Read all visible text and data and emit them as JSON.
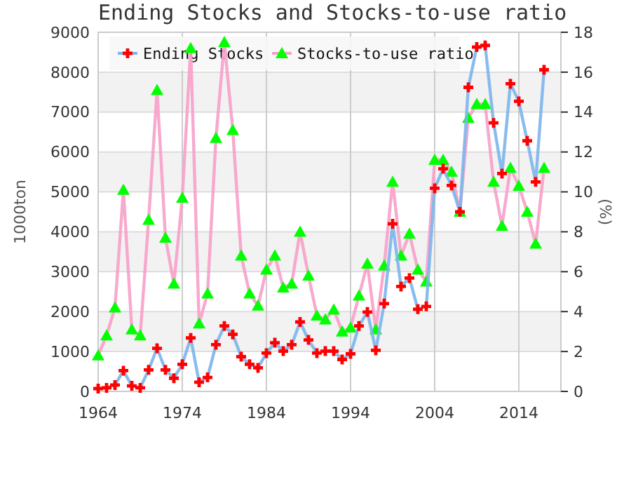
{
  "chart_data": {
    "type": "line",
    "title": "Ending Stocks and Stocks-to-use ratio",
    "ylabel": "1000ton",
    "y2label": "(%)",
    "x": [
      1964,
      1965,
      1966,
      1967,
      1968,
      1969,
      1970,
      1971,
      1972,
      1973,
      1974,
      1975,
      1976,
      1977,
      1978,
      1979,
      1980,
      1981,
      1982,
      1983,
      1984,
      1985,
      1986,
      1987,
      1988,
      1989,
      1990,
      1991,
      1992,
      1993,
      1994,
      1995,
      1996,
      1997,
      1998,
      1999,
      2000,
      2001,
      2002,
      2003,
      2004,
      2005,
      2006,
      2007,
      2008,
      2009,
      2010,
      2011,
      2012,
      2013,
      2014,
      2015,
      2016,
      2017
    ],
    "series": [
      {
        "name": "Ending Stocks",
        "color": "#7cb5ec",
        "colors": [
          "#ff0000",
          "#ff0000",
          "#ff0000",
          "#ff0000",
          "#ff0000",
          "#ff0000",
          "#ff0000",
          "#ff0000",
          "#ff0000",
          "#ff0000",
          "#ff0000",
          "#ff0000",
          "#ff0000",
          "#ff0000",
          "#ff0000",
          "#ff0000",
          "#ff0000",
          "#ff0000",
          "#ff0000",
          "#ff0000",
          "#ff0000",
          "#ff0000",
          "#ff0000",
          "#ff0000",
          "#ff0000",
          "#ff0000",
          "#ff0000",
          "#ff0000",
          "#ff0000",
          "#ff0000",
          "#ff0000",
          "#ff0000",
          "#ff0000",
          "#ff0000",
          "#ff0000",
          "#ff0000",
          "#ff0000",
          "#ff0000",
          "#ff0000",
          "#ff0000",
          "#ff0000",
          "#ff0000",
          "#ff0000",
          "#ff0000",
          "#ff0000",
          "#ff0000",
          "#ff0000",
          "#ff0000",
          "#ff0000",
          "#ff0000",
          "#ff0000",
          "#ff0000",
          "#ff0000",
          "#ff0000"
        ],
        "marker": "cross",
        "values": [
          70,
          90,
          160,
          520,
          140,
          90,
          540,
          1080,
          540,
          330,
          680,
          1340,
          230,
          350,
          1170,
          1640,
          1430,
          870,
          680,
          590,
          960,
          1220,
          1010,
          1170,
          1740,
          1290,
          960,
          1010,
          1010,
          800,
          940,
          1640,
          1990,
          1030,
          2200,
          4200,
          2630,
          2840,
          2060,
          2130,
          5090,
          5580,
          5160,
          4500,
          7620,
          8630,
          8670,
          6730,
          5460,
          7710,
          7270,
          6280,
          5250,
          8060
        ]
      },
      {
        "name": "Stocks-to-use ratio",
        "color": "#f7a0c8",
        "colors": [
          "#00ff00",
          "#00ff00",
          "#00ff00",
          "#00ff00",
          "#00ff00",
          "#00ff00",
          "#00ff00",
          "#00ff00",
          "#00ff00",
          "#00ff00",
          "#00ff00",
          "#00ff00",
          "#00ff00",
          "#00ff00",
          "#00ff00",
          "#00ff00",
          "#00ff00",
          "#00ff00",
          "#00ff00",
          "#00ff00",
          "#00ff00",
          "#00ff00",
          "#00ff00",
          "#00ff00",
          "#00ff00",
          "#00ff00",
          "#00ff00",
          "#00ff00",
          "#00ff00",
          "#00ff00",
          "#00ff00",
          "#00ff00",
          "#00ff00",
          "#00ff00",
          "#00ff00",
          "#00ff00",
          "#00ff00",
          "#00ff00",
          "#00ff00",
          "#00ff00",
          "#00ff00",
          "#00ff00",
          "#00ff00",
          "#00ff00",
          "#00ff00",
          "#00ff00",
          "#00ff00",
          "#00ff00",
          "#00ff00",
          "#00ff00",
          "#00ff00",
          "#00ff00",
          "#00ff00",
          "#00ff00"
        ],
        "marker": "triangle",
        "axis": "y2",
        "values": [
          1.8,
          2.8,
          4.2,
          10.1,
          3.1,
          2.8,
          8.6,
          15.1,
          7.7,
          5.4,
          9.7,
          17.2,
          3.4,
          4.9,
          12.7,
          17.5,
          13.1,
          6.8,
          4.9,
          4.3,
          6.1,
          6.8,
          5.2,
          5.4,
          8.0,
          5.8,
          3.8,
          3.6,
          4.1,
          3.0,
          3.2,
          4.8,
          6.4,
          3.1,
          6.3,
          10.5,
          6.8,
          7.9,
          6.1,
          5.5,
          11.6,
          11.6,
          11.0,
          9.0,
          13.7,
          14.4,
          14.4,
          10.5,
          8.3,
          11.2,
          10.3,
          9.0,
          7.4,
          11.2
        ]
      }
    ],
    "xlim": [
      1964,
      2019
    ],
    "xticks": [
      1964,
      1974,
      1984,
      1994,
      2004,
      2014
    ],
    "ylim": [
      0,
      9000
    ],
    "yticks": [
      0,
      1000,
      2000,
      3000,
      4000,
      5000,
      6000,
      7000,
      8000,
      9000
    ],
    "y2lim": [
      0,
      18
    ],
    "y2ticks": [
      0,
      2,
      4,
      6,
      8,
      10,
      12,
      14,
      16,
      18
    ],
    "grid": true,
    "legend": "top left",
    "line_style": "solid"
  }
}
